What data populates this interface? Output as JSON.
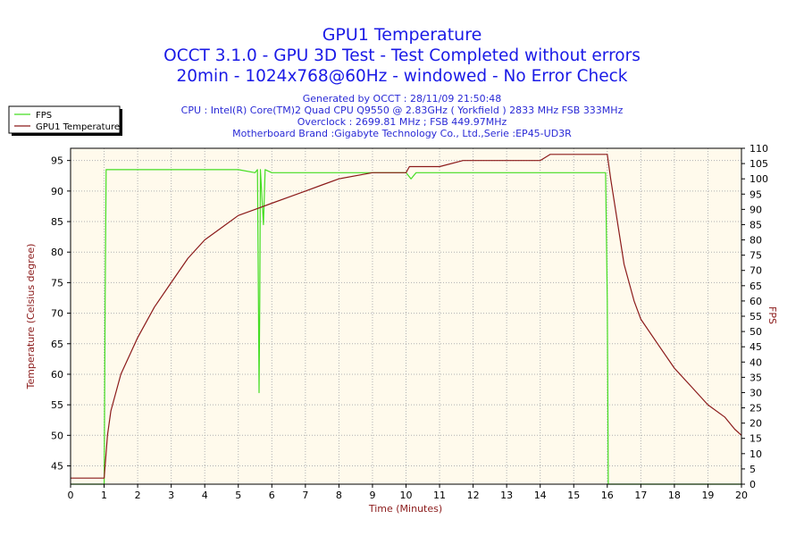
{
  "titles": {
    "line1": "GPU1 Temperature",
    "line2": "OCCT 3.1.0 - GPU 3D Test - Test Completed without errors",
    "line3": "20min - 1024x768@60Hz - windowed - No Error Check"
  },
  "info": {
    "generated": "Generated by OCCT : 28/11/09 21:50:48",
    "cpu": "CPU : Intel(R) Core(TM)2 Quad CPU Q9550 @ 2.83GHz ( Yorkfield ) 2833 MHz FSB 333MHz",
    "overclock": "Overclock : 2699.81 MHz ; FSB 449.97MHz",
    "motherboard": "Motherboard Brand :Gigabyte Technology Co., Ltd.,Serie :EP45-UD3R"
  },
  "colors": {
    "plot_bg": "#fffaec",
    "grid": "#b0b0b0",
    "fps": "#44dd22",
    "temperature": "#8b1a1a",
    "title": "#1a1ae6"
  },
  "chart_data": {
    "type": "line",
    "title": "GPU1 Temperature",
    "xlabel": "Time (Minutes)",
    "ylabel_left": "Temperature (Celsius degree)",
    "ylabel_right": "FPS",
    "xlim": [
      0,
      20
    ],
    "ylim_left": [
      42,
      97
    ],
    "ylim_right": [
      0,
      110
    ],
    "x_ticks": [
      0,
      1,
      2,
      3,
      4,
      5,
      6,
      7,
      8,
      9,
      10,
      11,
      12,
      13,
      14,
      15,
      16,
      17,
      18,
      19,
      20
    ],
    "y_left_ticks": [
      45,
      50,
      55,
      60,
      65,
      70,
      75,
      80,
      85,
      90,
      95
    ],
    "y_right_ticks": [
      0,
      5,
      10,
      15,
      20,
      25,
      30,
      35,
      40,
      45,
      50,
      55,
      60,
      65,
      70,
      75,
      80,
      85,
      90,
      95,
      100,
      105,
      110
    ],
    "grid": true,
    "legend_position": "top-left",
    "series": [
      {
        "name": "FPS",
        "axis": "right",
        "color": "#44dd22",
        "points": [
          [
            0,
            0
          ],
          [
            1.0,
            0
          ],
          [
            1.03,
            60
          ],
          [
            1.06,
            103
          ],
          [
            2,
            103
          ],
          [
            3,
            103
          ],
          [
            4,
            103
          ],
          [
            5,
            103
          ],
          [
            5.5,
            102
          ],
          [
            5.57,
            103
          ],
          [
            5.6,
            60
          ],
          [
            5.62,
            30
          ],
          [
            5.64,
            60
          ],
          [
            5.66,
            103
          ],
          [
            5.75,
            85
          ],
          [
            5.8,
            103
          ],
          [
            6,
            102
          ],
          [
            7,
            102
          ],
          [
            8,
            102
          ],
          [
            9,
            102
          ],
          [
            10,
            102
          ],
          [
            10.15,
            100
          ],
          [
            10.3,
            102
          ],
          [
            11,
            102
          ],
          [
            12,
            102
          ],
          [
            13,
            102
          ],
          [
            14,
            102
          ],
          [
            15,
            102
          ],
          [
            15.95,
            102
          ],
          [
            16.0,
            60
          ],
          [
            16.03,
            0
          ],
          [
            20,
            0
          ]
        ]
      },
      {
        "name": "GPU1 Temperature",
        "axis": "left",
        "color": "#8b1a1a",
        "points": [
          [
            0,
            43
          ],
          [
            1.0,
            43
          ],
          [
            1.1,
            50
          ],
          [
            1.2,
            54
          ],
          [
            1.5,
            60
          ],
          [
            2,
            66
          ],
          [
            2.5,
            71
          ],
          [
            3,
            75
          ],
          [
            3.5,
            79
          ],
          [
            4,
            82
          ],
          [
            4.5,
            84
          ],
          [
            5,
            86
          ],
          [
            5.5,
            87
          ],
          [
            6,
            88
          ],
          [
            6.5,
            89
          ],
          [
            7,
            90
          ],
          [
            7.5,
            91
          ],
          [
            8,
            92
          ],
          [
            9,
            93
          ],
          [
            10,
            93
          ],
          [
            10.1,
            94
          ],
          [
            11,
            94
          ],
          [
            11.7,
            95
          ],
          [
            12,
            95
          ],
          [
            14,
            95
          ],
          [
            14.3,
            96
          ],
          [
            15,
            96
          ],
          [
            16,
            96
          ],
          [
            16.1,
            92
          ],
          [
            16.5,
            78
          ],
          [
            16.8,
            72
          ],
          [
            17,
            69
          ],
          [
            17.5,
            65
          ],
          [
            18,
            61
          ],
          [
            18.5,
            58
          ],
          [
            19,
            55
          ],
          [
            19.5,
            53
          ],
          [
            19.8,
            51
          ],
          [
            20,
            50
          ]
        ]
      }
    ]
  }
}
